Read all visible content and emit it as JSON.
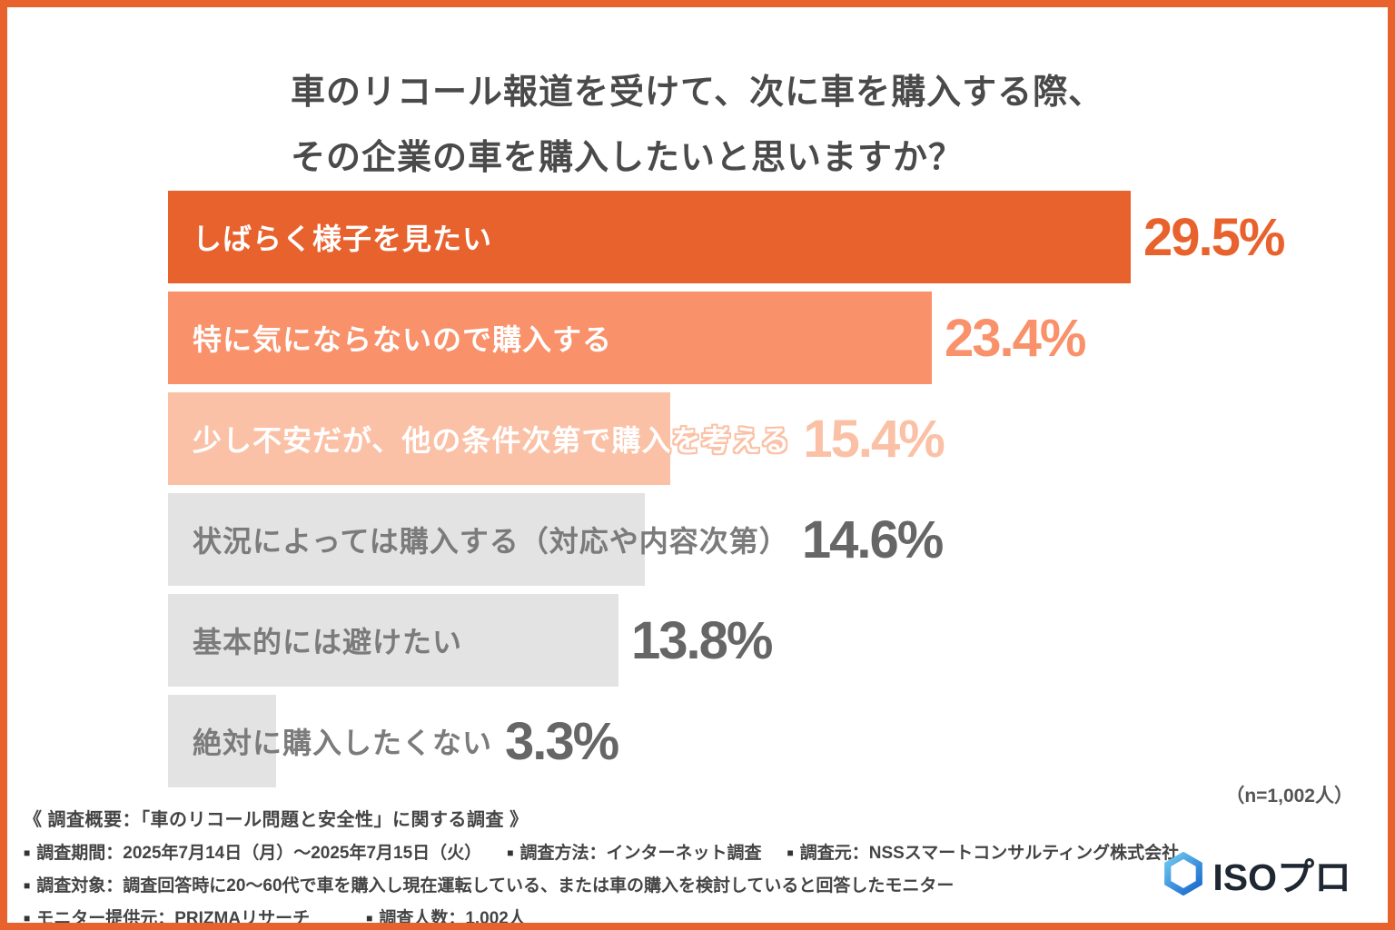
{
  "title_lines": [
    "車のリコール報道を受けて、次に車を購入する際、",
    "その企業の車を購入したいと思いますか？"
  ],
  "chart_data": {
    "type": "bar",
    "orientation": "horizontal",
    "title": "車のリコール報道を受けて、次に車を購入する際、その企業の車を購入したいと思いますか？",
    "categories": [
      "しばらく様子を見たい",
      "特に気にならないので購入する",
      "少し不安だが、他の条件次第で購入を考える",
      "状況によっては購入する（対応や内容次第）",
      "基本的には避けたい",
      "絶対に購入したくない"
    ],
    "values": [
      29.5,
      23.4,
      15.4,
      14.6,
      13.8,
      3.3
    ],
    "value_suffix": "%",
    "xlim": [
      0,
      29.5
    ],
    "grid": false,
    "legend": false,
    "bar_colors": [
      "#E8622E",
      "#F9916B",
      "#FBC1A6",
      "#E3E3E3",
      "#E3E3E3",
      "#E3E3E3"
    ],
    "label_colors": [
      "#FFFFFF",
      "#FFFFFF",
      "#FFFFFF",
      "#7B7B7B",
      "#7B7B7B",
      "#7B7B7B"
    ],
    "label_outline_colors": [
      null,
      null,
      "#FBC1A6",
      null,
      null,
      null
    ],
    "value_colors": [
      "#E8622E",
      "#F9916B",
      "#FBC1A6",
      "#666666",
      "#666666",
      "#666666"
    ],
    "sample_note": "（n=1,002人）"
  },
  "footer": {
    "bullet": "■",
    "heading": "《 調査概要：「車のリコール問題と安全性」に関する調査 》",
    "rows": [
      [
        "調査期間：2025年7月14日（月）〜2025年7月15日（火）",
        "調査方法：インターネット調査",
        "調査元：NSSスマートコンサルティング株式会社"
      ],
      [
        "調査対象：調査回答時に20〜60代で車を購入し現在運転している、または車の購入を検討していると回答したモニター"
      ],
      [
        "モニター提供元：PRIZMAリサーチ",
        "調査人数：1,002人"
      ]
    ]
  },
  "logo": {
    "text": "ISOプロ",
    "icon_gradient_start": "#6FC8F0",
    "icon_gradient_end": "#1E6FD0"
  }
}
